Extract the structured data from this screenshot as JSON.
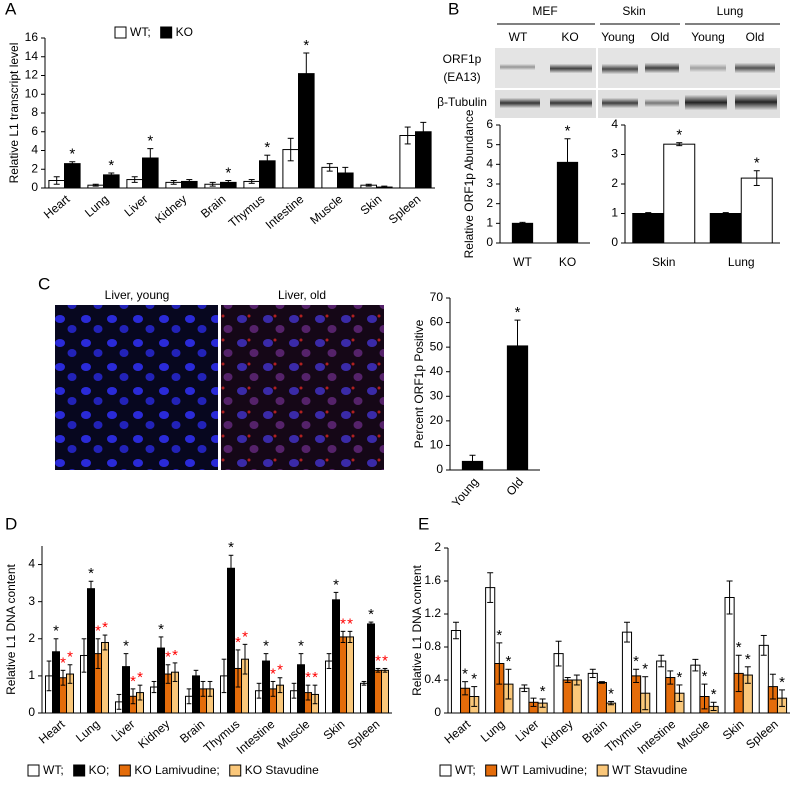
{
  "chart_data": [
    {
      "type": "bar",
      "panel": "A",
      "y_label": "Relative L1 transcript level",
      "legend": "upper center",
      "categories": [
        "Heart",
        "Lung",
        "Liver",
        "Kidney",
        "Brain",
        "Thymus",
        "Intestine",
        "Muscle",
        "Skin",
        "Spleen"
      ],
      "ylim": [
        0,
        16
      ],
      "yticks": [
        0,
        2,
        4,
        6,
        8,
        10,
        12,
        14,
        16
      ],
      "series": [
        {
          "name": "WT;",
          "color": "#ffffff",
          "values": [
            0.8,
            0.3,
            0.9,
            0.6,
            0.4,
            0.7,
            4.1,
            2.2,
            0.3,
            5.6
          ],
          "errors": [
            0.4,
            0.1,
            0.3,
            0.2,
            0.2,
            0.2,
            1.2,
            0.4,
            0.1,
            0.9
          ],
          "stars": [
            null,
            null,
            null,
            null,
            null,
            null,
            null,
            null,
            null,
            null
          ]
        },
        {
          "name": "KO",
          "color": "#000000",
          "values": [
            2.6,
            1.4,
            3.2,
            0.7,
            0.6,
            2.9,
            12.2,
            1.6,
            0.1,
            6.0
          ],
          "errors": [
            0.2,
            0.2,
            1.0,
            0.2,
            0.2,
            0.6,
            2.2,
            0.6,
            0.1,
            1.0
          ],
          "stars": [
            "*",
            "*",
            "*",
            null,
            "*",
            "*",
            "*",
            null,
            null,
            null
          ]
        }
      ]
    },
    {
      "type": "bar",
      "panel": "B",
      "y_label": "Relative ORF1p Abundance",
      "categories": [
        "WT",
        "KO"
      ],
      "ylim": [
        0,
        6
      ],
      "yticks": [
        0,
        1,
        2,
        3,
        4,
        5,
        6
      ],
      "series": [
        {
          "color": "#000000",
          "values": [
            1,
            4.1
          ],
          "errors": [
            0.05,
            1.2
          ],
          "stars": [
            null,
            "*"
          ]
        }
      ]
    },
    {
      "type": "bar",
      "categories": [
        "Skin",
        "Lung"
      ],
      "ylim": [
        0,
        4
      ],
      "yticks": [
        0,
        1,
        2,
        3,
        4
      ],
      "series": [
        {
          "color": "#000000",
          "values": [
            1,
            1
          ],
          "errors": [
            0.03,
            0.03
          ],
          "stars": [
            null,
            null
          ]
        },
        {
          "color": "#ffffff",
          "values": [
            3.35,
            2.2
          ],
          "errors": [
            0.05,
            0.25
          ],
          "stars": [
            "*",
            "*"
          ]
        }
      ]
    },
    {
      "type": "bar",
      "panel": "C",
      "y_label": "Percent ORF1p Positive",
      "categories": [
        "Young",
        "Old"
      ],
      "ylim": [
        0,
        70
      ],
      "yticks": [
        0,
        10,
        20,
        30,
        40,
        50,
        60,
        70
      ],
      "series": [
        {
          "color": "#000000",
          "values": [
            3.5,
            50.5
          ],
          "errors": [
            2.5,
            10.5
          ],
          "stars": [
            null,
            "*"
          ]
        }
      ]
    },
    {
      "type": "bar",
      "panel": "D",
      "y_label": "Relative L1 DNA content",
      "legend": "bottom",
      "categories": [
        "Heart",
        "Lung",
        "Liver",
        "Kidney",
        "Brain",
        "Thymus",
        "Intestine",
        "Muscle",
        "Skin",
        "Spleen"
      ],
      "ylim": [
        0,
        4.5
      ],
      "yticks": [
        0,
        1,
        2,
        3,
        4
      ],
      "series": [
        {
          "name": "WT;",
          "color": "#ffffff",
          "values": [
            1.0,
            1.55,
            0.3,
            0.7,
            0.45,
            1.0,
            0.6,
            0.6,
            1.4,
            0.8
          ],
          "errors": [
            0.4,
            0.45,
            0.2,
            0.15,
            0.2,
            0.45,
            0.2,
            0.2,
            0.2,
            0.05
          ],
          "stars": [
            null,
            null,
            null,
            null,
            null,
            null,
            null,
            null,
            null,
            null
          ]
        },
        {
          "name": "KO;",
          "color": "#000000",
          "values": [
            1.65,
            3.35,
            1.25,
            1.75,
            1.0,
            3.9,
            1.4,
            1.3,
            3.05,
            2.4
          ],
          "errors": [
            0.35,
            0.2,
            0.35,
            0.3,
            0.15,
            0.35,
            0.2,
            0.3,
            0.2,
            0.05
          ],
          "stars": [
            "*",
            "*",
            "*",
            "*",
            null,
            "*",
            "*",
            "*",
            "*",
            "*"
          ]
        },
        {
          "name": "KO Lamivudine;",
          "color": "#e46c0a",
          "star_color": "#ff0000",
          "values": [
            0.95,
            1.6,
            0.45,
            1.05,
            0.65,
            1.2,
            0.65,
            0.55,
            2.05,
            1.15
          ],
          "errors": [
            0.2,
            0.4,
            0.2,
            0.25,
            0.2,
            0.5,
            0.2,
            0.2,
            0.15,
            0.05
          ],
          "stars": [
            "*",
            "*",
            "*",
            "*",
            null,
            "*",
            "*",
            "*",
            "*",
            "*"
          ]
        },
        {
          "name": "KO Stavudine",
          "color": "#fac77a",
          "star_color": "#ff0000",
          "values": [
            1.05,
            1.9,
            0.55,
            1.1,
            0.65,
            1.45,
            0.75,
            0.5,
            2.05,
            1.15
          ],
          "errors": [
            0.25,
            0.2,
            0.2,
            0.25,
            0.2,
            0.4,
            0.2,
            0.25,
            0.15,
            0.05
          ],
          "stars": [
            "*",
            "*",
            "*",
            "*",
            null,
            "*",
            "*",
            "*",
            "*",
            "*"
          ]
        }
      ]
    },
    {
      "type": "bar",
      "panel": "E",
      "y_label": "Relative L1 DNA content",
      "legend": "bottom",
      "categories": [
        "Heart",
        "Lung",
        "Liver",
        "Kidney",
        "Brain",
        "Thymus",
        "Intestine",
        "Muscle",
        "Skin",
        "Spleen"
      ],
      "ylim": [
        0,
        2
      ],
      "yticks": [
        0,
        0.4,
        0.8,
        1.2,
        1.6,
        2
      ],
      "series": [
        {
          "name": "WT;",
          "color": "#ffffff",
          "values": [
            1.0,
            1.52,
            0.3,
            0.72,
            0.48,
            0.98,
            0.63,
            0.58,
            1.4,
            0.82
          ],
          "errors": [
            0.1,
            0.18,
            0.04,
            0.15,
            0.05,
            0.12,
            0.07,
            0.07,
            0.2,
            0.12
          ],
          "stars": [
            null,
            null,
            null,
            null,
            null,
            null,
            null,
            null,
            null,
            null
          ]
        },
        {
          "name": "WT Lamivudine;",
          "color": "#e46c0a",
          "values": [
            0.3,
            0.6,
            0.13,
            0.4,
            0.37,
            0.45,
            0.43,
            0.2,
            0.48,
            0.32
          ],
          "errors": [
            0.08,
            0.25,
            0.05,
            0.03,
            0.01,
            0.08,
            0.08,
            0.15,
            0.22,
            0.15
          ],
          "stars": [
            "*",
            "*",
            null,
            null,
            null,
            "*",
            null,
            "*",
            "*",
            null
          ]
        },
        {
          "name": "WT Stavudine",
          "color": "#fac77a",
          "values": [
            0.2,
            0.35,
            0.12,
            0.4,
            0.12,
            0.24,
            0.24,
            0.08,
            0.46,
            0.18
          ],
          "errors": [
            0.12,
            0.18,
            0.05,
            0.06,
            0.02,
            0.2,
            0.1,
            0.05,
            0.1,
            0.1
          ],
          "stars": [
            "*",
            "*",
            "*",
            null,
            "*",
            "*",
            "*",
            "*",
            "*",
            "*"
          ]
        }
      ]
    }
  ],
  "blot": {
    "groups": [
      "MEF",
      "Skin",
      "Lung"
    ],
    "lanes": [
      "WT",
      "KO",
      "Young",
      "Old",
      "Young",
      "Old"
    ],
    "rows": [
      "ORF1p",
      "(EA13)",
      "β-Tubulin"
    ]
  },
  "micrographs": {
    "labels": [
      "Liver, young",
      "Liver, old"
    ]
  }
}
